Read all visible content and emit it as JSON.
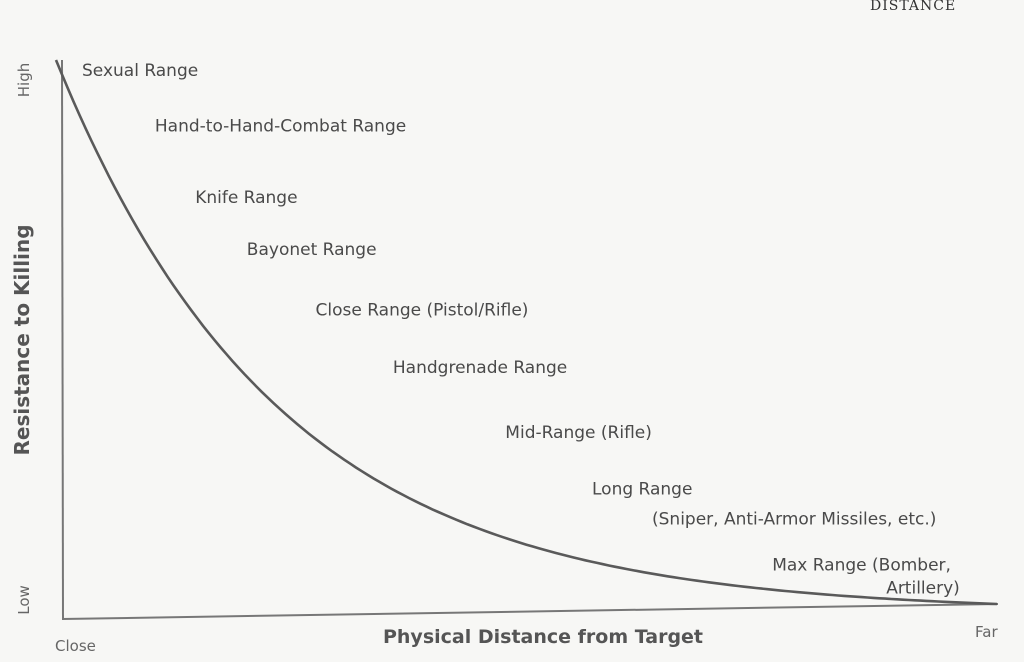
{
  "corner_text": "DISTANCE",
  "chart_data": {
    "type": "line",
    "title": "",
    "xlabel": "Physical Distance from Target",
    "ylabel": "Resistance to Killing",
    "x_ticks": [
      "Close",
      "Far"
    ],
    "y_ticks": [
      "Low",
      "High"
    ],
    "x": [
      0,
      0.053,
      0.099,
      0.156,
      0.229,
      0.306,
      0.419,
      0.542,
      0.794,
      1.0
    ],
    "y": [
      1.0,
      0.885,
      0.77,
      0.664,
      0.556,
      0.458,
      0.347,
      0.229,
      0.078,
      0.025
    ],
    "annotations": [
      {
        "lines": [
          "Sexual Range"
        ],
        "x": 0.0,
        "y": 1.0
      },
      {
        "lines": [
          "Hand-to-Hand-Combat Range"
        ],
        "x": 0.053,
        "y": 0.885
      },
      {
        "lines": [
          "Knife Range"
        ],
        "x": 0.099,
        "y": 0.77
      },
      {
        "lines": [
          "Bayonet Range"
        ],
        "x": 0.156,
        "y": 0.664
      },
      {
        "lines": [
          "Close Range (Pistol/Rifle)"
        ],
        "x": 0.229,
        "y": 0.556
      },
      {
        "lines": [
          "Handgrenade Range"
        ],
        "x": 0.306,
        "y": 0.458
      },
      {
        "lines": [
          "Mid-Range (Rifle)"
        ],
        "x": 0.419,
        "y": 0.347
      },
      {
        "lines": [
          "Long Range",
          "(Sniper,  Anti-Armor Missiles, etc.)"
        ],
        "x": 0.542,
        "y": 0.229
      },
      {
        "lines": [
          "Max Range (Bomber,",
          "Artillery)"
        ],
        "x": 0.794,
        "y": 0.078
      }
    ],
    "grid": false,
    "legend": "none"
  }
}
